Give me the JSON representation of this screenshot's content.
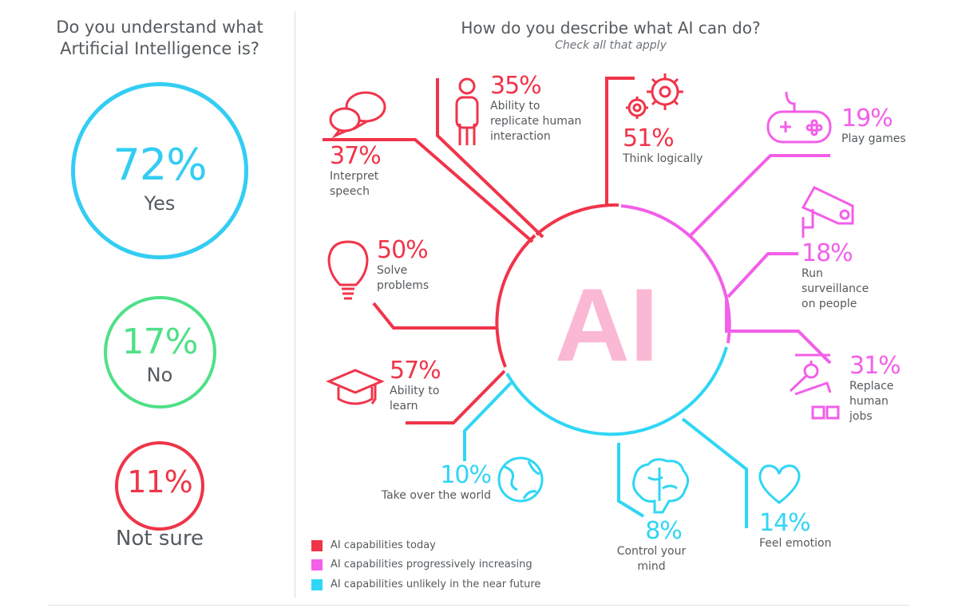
{
  "colors": {
    "today": "#f0344a",
    "increasing": "#f25fe8",
    "unlikely": "#2fd6f5",
    "yes": "#33cdf3",
    "no": "#4fe087",
    "not_sure": "#ef3548",
    "ai_text": "#fab8d5",
    "text": "#555a5e"
  },
  "left": {
    "title_line1": "Do you understand what",
    "title_line2": "Artificial Intelligence is?",
    "answers": [
      {
        "pct": "72%",
        "label": "Yes"
      },
      {
        "pct": "17%",
        "label": "No"
      },
      {
        "pct": "11%",
        "label": "Not sure"
      }
    ]
  },
  "right": {
    "title": "How do you describe what AI can do?",
    "subtitle": "Check all that apply",
    "center": "AI",
    "legend": [
      "AI capabilities today",
      "AI capabilities progressively increasing",
      "AI capabilities unlikely in the near future"
    ]
  },
  "chart_data": [
    {
      "type": "pie",
      "title": "Do you understand what Artificial Intelligence is?",
      "categories": [
        "Yes",
        "No",
        "Not sure"
      ],
      "values": [
        72,
        17,
        11
      ]
    },
    {
      "type": "bar",
      "title": "How do you describe what AI can do?",
      "subtitle": "Check all that apply",
      "categories": [
        "Ability to replicate human interaction",
        "Interpret speech",
        "Think logically",
        "Play games",
        "Solve problems",
        "Run surveillance on people",
        "Ability to learn",
        "Replace human jobs",
        "Take over the world",
        "Control your mind",
        "Feel emotion"
      ],
      "values": [
        35,
        37,
        51,
        19,
        50,
        18,
        57,
        31,
        10,
        8,
        14
      ],
      "groups": [
        "AI capabilities today",
        "AI capabilities today",
        "AI capabilities today",
        "AI capabilities progressively increasing",
        "AI capabilities today",
        "AI capabilities progressively increasing",
        "AI capabilities today",
        "AI capabilities progressively increasing",
        "AI capabilities unlikely in the near future",
        "AI capabilities unlikely in the near future",
        "AI capabilities unlikely in the near future"
      ],
      "legend": [
        "AI capabilities today",
        "AI capabilities progressively increasing",
        "AI capabilities unlikely in the near future"
      ],
      "legend_position": "bottom-left",
      "items": [
        {
          "pct": "35%",
          "lines": [
            "Ability to",
            "replicate human",
            "interaction"
          ],
          "icon": "person-icon"
        },
        {
          "pct": "37%",
          "lines": [
            "Interpret",
            "speech"
          ],
          "icon": "speech-bubbles-icon"
        },
        {
          "pct": "51%",
          "lines": [
            "Think logically"
          ],
          "icon": "gears-icon"
        },
        {
          "pct": "19%",
          "lines": [
            "Play games"
          ],
          "icon": "gamepad-icon"
        },
        {
          "pct": "50%",
          "lines": [
            "Solve",
            "problems"
          ],
          "icon": "lightbulb-icon"
        },
        {
          "pct": "18%",
          "lines": [
            "Run",
            "surveillance",
            "on people"
          ],
          "icon": "camera-icon"
        },
        {
          "pct": "57%",
          "lines": [
            "Ability to",
            "learn"
          ],
          "icon": "graduation-cap-icon"
        },
        {
          "pct": "31%",
          "lines": [
            "Replace",
            "human",
            "jobs"
          ],
          "icon": "robot-arm-icon"
        },
        {
          "pct": "10%",
          "lines": [
            "Take over the world"
          ],
          "icon": "globe-icon"
        },
        {
          "pct": "8%",
          "lines": [
            "Control your",
            "mind"
          ],
          "icon": "brain-icon"
        },
        {
          "pct": "14%",
          "lines": [
            "Feel emotion"
          ],
          "icon": "heart-icon"
        }
      ]
    }
  ]
}
